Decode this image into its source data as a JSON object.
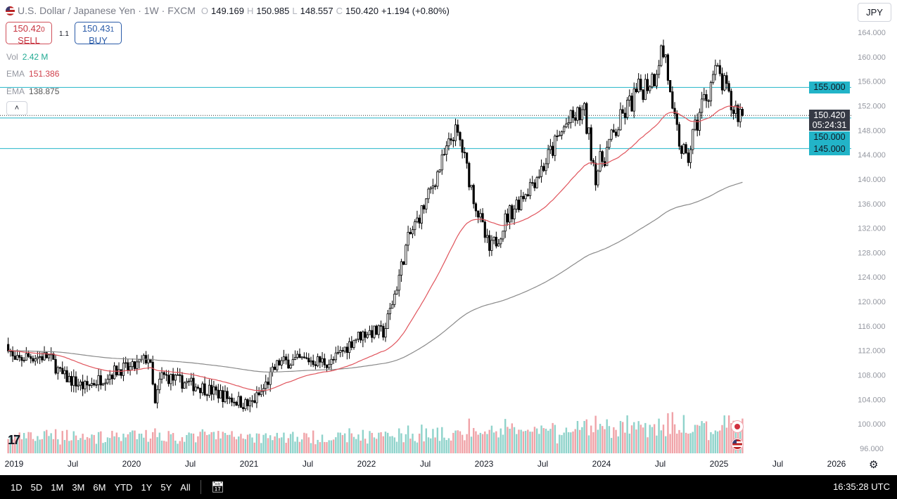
{
  "header": {
    "symbol_title": "U.S. Dollar / Japanese Yen · 1W · FXCM",
    "open_label": "O",
    "open": "149.169",
    "high_label": "H",
    "high": "150.985",
    "low_label": "L",
    "low": "148.557",
    "close_label": "C",
    "close": "150.420",
    "change": "+1.194 (+0.80%)"
  },
  "trade": {
    "sell_price": "150.42",
    "sell_sup": "0",
    "sell_label": "SELL",
    "spread": "1.1",
    "buy_price": "150.43",
    "buy_sup": "1",
    "buy_label": "BUY"
  },
  "indicators": {
    "vol_label": "Vol",
    "vol_value": "2.42 M",
    "ema1_label": "EMA",
    "ema1_value": "151.386",
    "ema2_label": "EMA",
    "ema2_value": "138.875"
  },
  "currency_button": "JPY",
  "collapse_icon": "chevron-up-icon",
  "price_tags": {
    "l155": "155.000",
    "current": "150.420",
    "countdown": "05:24:31",
    "l150": "150.000",
    "l145": "145.000"
  },
  "colors": {
    "up": "#ffffff",
    "down": "#000000",
    "ema_fast": "#e0545c",
    "ema_slow": "#8a8a8a",
    "hline": "#22b4c8",
    "vol_up": "#8fd3cb",
    "vol_down": "#f0a3a8"
  },
  "chart_data": {
    "type": "candlestick",
    "interval": "1W",
    "ylim": [
      96,
      164
    ],
    "yticks": [
      "164.000",
      "160.000",
      "156.000",
      "152.000",
      "148.000",
      "144.000",
      "140.000",
      "136.000",
      "132.000",
      "128.000",
      "124.000",
      "120.000",
      "116.000",
      "112.000",
      "108.000",
      "104.000",
      "100.000",
      "96.000"
    ],
    "xticks": [
      "2019",
      "Jul",
      "2020",
      "Jul",
      "2021",
      "Jul",
      "2022",
      "Jul",
      "2023",
      "Jul",
      "2024",
      "Jul",
      "2025",
      "Jul",
      "2026"
    ],
    "horizontal_lines": [
      155,
      150,
      145
    ],
    "last_price": 150.42,
    "close_path": [
      [
        2018.95,
        113
      ],
      [
        2019.0,
        110
      ],
      [
        2019.1,
        111
      ],
      [
        2019.3,
        111
      ],
      [
        2019.4,
        108
      ],
      [
        2019.6,
        106
      ],
      [
        2019.7,
        107
      ],
      [
        2019.9,
        109
      ],
      [
        2020.0,
        109
      ],
      [
        2020.15,
        111
      ],
      [
        2020.2,
        103
      ],
      [
        2020.25,
        108
      ],
      [
        2020.4,
        107
      ],
      [
        2020.6,
        106
      ],
      [
        2020.8,
        104.5
      ],
      [
        2021.0,
        103
      ],
      [
        2021.1,
        105
      ],
      [
        2021.25,
        110
      ],
      [
        2021.5,
        110.5
      ],
      [
        2021.7,
        110
      ],
      [
        2021.9,
        114
      ],
      [
        2022.0,
        115
      ],
      [
        2022.15,
        115
      ],
      [
        2022.25,
        122
      ],
      [
        2022.35,
        130
      ],
      [
        2022.5,
        136
      ],
      [
        2022.75,
        148
      ],
      [
        2022.8,
        146
      ],
      [
        2022.9,
        138
      ],
      [
        2023.0,
        131
      ],
      [
        2023.05,
        128
      ],
      [
        2023.2,
        134
      ],
      [
        2023.35,
        138
      ],
      [
        2023.5,
        142
      ],
      [
        2023.7,
        149
      ],
      [
        2023.85,
        151
      ],
      [
        2023.95,
        141
      ],
      [
        2024.0,
        143
      ],
      [
        2024.2,
        151
      ],
      [
        2024.3,
        154
      ],
      [
        2024.45,
        157
      ],
      [
        2024.5,
        161
      ],
      [
        2024.55,
        160
      ],
      [
        2024.6,
        150
      ],
      [
        2024.7,
        144
      ],
      [
        2024.72,
        142
      ],
      [
        2024.75,
        145
      ],
      [
        2024.85,
        152
      ],
      [
        2024.9,
        154
      ],
      [
        2024.95,
        157
      ],
      [
        2025.0,
        157
      ],
      [
        2025.1,
        152
      ],
      [
        2025.2,
        150.42
      ]
    ],
    "ema_periods": [
      50,
      200
    ]
  },
  "bottom": {
    "timeframes": [
      "1D",
      "5D",
      "1M",
      "3M",
      "6M",
      "YTD",
      "1Y",
      "5Y",
      "All"
    ],
    "clock": "16:35:28 UTC"
  }
}
